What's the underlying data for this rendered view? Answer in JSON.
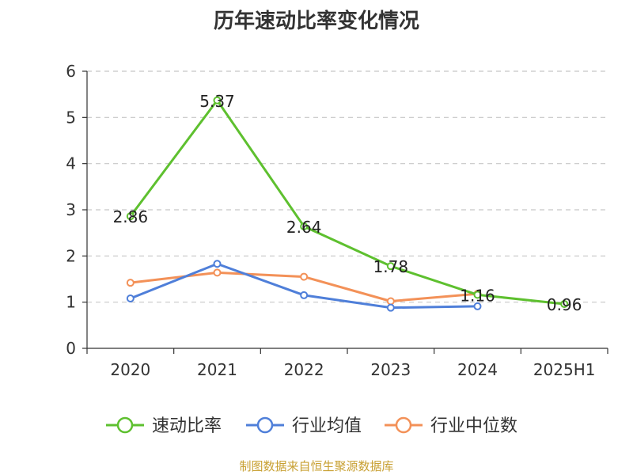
{
  "chart_data": {
    "type": "line",
    "title": "历年速动比率变化情况",
    "categories": [
      "2020",
      "2021",
      "2022",
      "2023",
      "2024",
      "2025H1"
    ],
    "ylim": [
      0,
      6
    ],
    "yticks": [
      0,
      1,
      2,
      3,
      4,
      5,
      6
    ],
    "grid": true,
    "legend_position": "bottom",
    "series": [
      {
        "name": "速动比率",
        "color": "#5ec02f",
        "values": [
          2.86,
          5.37,
          2.64,
          1.78,
          1.16,
          0.96
        ],
        "labels": [
          "2.86",
          "5.37",
          "2.64",
          "1.78",
          "1.16",
          "0.96"
        ]
      },
      {
        "name": "行业均值",
        "color": "#4f7fd9",
        "values": [
          1.08,
          1.83,
          1.15,
          0.88,
          0.91,
          null
        ]
      },
      {
        "name": "行业中位数",
        "color": "#f39158",
        "values": [
          1.42,
          1.64,
          1.55,
          1.02,
          1.18,
          null
        ]
      }
    ]
  },
  "source": "制图数据来自恒生聚源数据库"
}
